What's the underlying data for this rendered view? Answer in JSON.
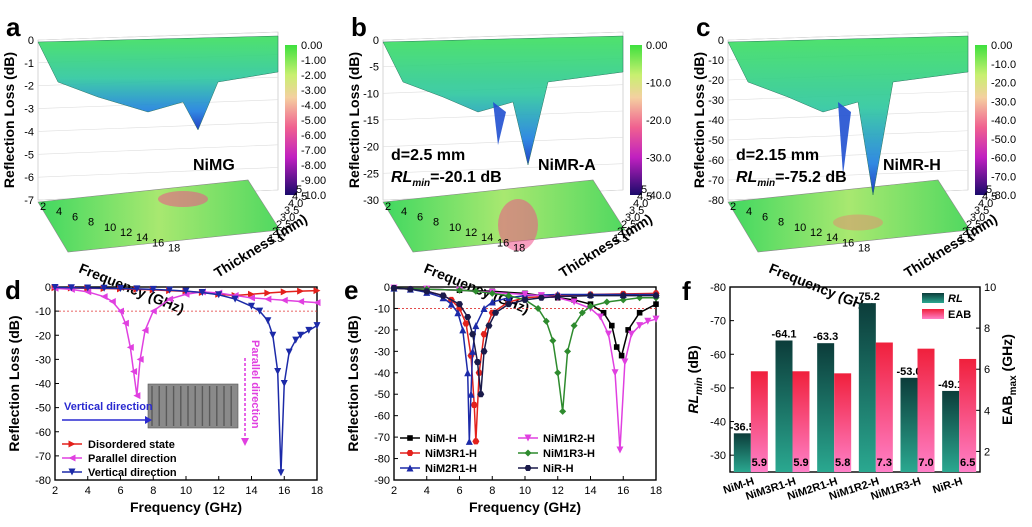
{
  "chart_data": [
    {
      "panel": "a",
      "type": "surface3d",
      "label": "NiMG",
      "zlabel": "Reflection Loss (dB)",
      "xlabel": "Frequency (GHz)",
      "ylabel": "Thickness (mm)",
      "zticks": [
        "0",
        "-1",
        "-2",
        "-3",
        "-4",
        "-5",
        "-6",
        "-7"
      ],
      "xticks": [
        "2",
        "4",
        "6",
        "8",
        "10",
        "12",
        "14",
        "16",
        "18"
      ],
      "yticks": [
        "1.5",
        "2.0",
        "2.5",
        "3.0",
        "3.5",
        "4.0",
        "4.5",
        "5"
      ],
      "colorbar": [
        "0.00",
        "-1.00",
        "-2.00",
        "-3.00",
        "-4.00",
        "-5.00",
        "-6.00",
        "-7.00",
        "-8.00",
        "-9.00",
        "-10.0"
      ]
    },
    {
      "panel": "b",
      "type": "surface3d",
      "label": "NiMR-A",
      "annotation": [
        "d=2.5 mm",
        "RLmin=-20.1 dB"
      ],
      "zlabel": "Reflection Loss (dB)",
      "xlabel": "Frequency (GHz)",
      "ylabel": "Thickness (mm)",
      "zticks": [
        "0",
        "-5",
        "-10",
        "-15",
        "-20",
        "-25",
        "-30"
      ],
      "xticks": [
        "2",
        "4",
        "6",
        "8",
        "10",
        "12",
        "14",
        "16",
        "18"
      ],
      "yticks": [
        "1.5",
        "2.0",
        "2.5",
        "3.0",
        "3.5",
        "4.0",
        "4.5",
        "5"
      ],
      "colorbar": [
        "0.00",
        "-10.0",
        "-20.0",
        "-30.0",
        "-40.0"
      ]
    },
    {
      "panel": "c",
      "type": "surface3d",
      "label": "NiMR-H",
      "annotation": [
        "d=2.15 mm",
        "RLmin=-75.2 dB"
      ],
      "zlabel": "Reflection Loss (dB)",
      "xlabel": "Frequency (GHz)",
      "ylabel": "Thickness (mm)",
      "zticks": [
        "0",
        "-10",
        "-20",
        "-30",
        "-40",
        "-50",
        "-60",
        "-70",
        "-80"
      ],
      "xticks": [
        "2",
        "4",
        "6",
        "8",
        "10",
        "12",
        "14",
        "16",
        "18"
      ],
      "yticks": [
        "1.5",
        "2.0",
        "2.5",
        "3.0",
        "3.5",
        "4.0",
        "4.5",
        "5"
      ],
      "colorbar": [
        "0.00",
        "-10.0",
        "-20.0",
        "-30.0",
        "-40.0",
        "-50.0",
        "-60.0",
        "-70.0",
        "-80.0"
      ]
    },
    {
      "panel": "d",
      "type": "line",
      "xlabel": "Frequency (GHz)",
      "ylabel": "Reflection Loss (dB)",
      "xlim": [
        2,
        18
      ],
      "ylim": [
        -80,
        0
      ],
      "xticks": [
        2,
        4,
        6,
        8,
        10,
        12,
        14,
        16,
        18
      ],
      "yticks": [
        0,
        -10,
        -20,
        -30,
        -40,
        -50,
        -60,
        -70,
        -80
      ],
      "threshold": -10,
      "annotations": [
        "Vertical direction",
        "Parallel direction"
      ],
      "series": [
        {
          "name": "Disordered state",
          "color": "#e3211c",
          "marker": "tri-right",
          "x": [
            2,
            3,
            4,
            5,
            6,
            7,
            8,
            9,
            10,
            11,
            12,
            13,
            14,
            15,
            16,
            17,
            18
          ],
          "y": [
            -0.3,
            -0.4,
            -0.5,
            -0.6,
            -0.8,
            -1.0,
            -1.2,
            -1.5,
            -1.8,
            -2.3,
            -3.0,
            -3.5,
            -3.0,
            -2.5,
            -2.0,
            -1.7,
            -1.5
          ]
        },
        {
          "name": "Parallel direction",
          "color": "#e040e0",
          "marker": "tri-left",
          "x": [
            2,
            3,
            4,
            5,
            5.5,
            6,
            6.3,
            6.6,
            6.8,
            7.0,
            7.2,
            7.5,
            8,
            9,
            10,
            11,
            12,
            13,
            14,
            15,
            16,
            17,
            18
          ],
          "y": [
            -0.5,
            -1.0,
            -2.0,
            -4.0,
            -6.0,
            -10,
            -15,
            -25,
            -35,
            -45,
            -30,
            -18,
            -10,
            -5,
            -3,
            -2,
            -2.5,
            -3.5,
            -4.5,
            -5.0,
            -5.5,
            -6.0,
            -6.5
          ]
        },
        {
          "name": "Vertical direction",
          "color": "#1c2aa8",
          "marker": "tri-down",
          "x": [
            2,
            3,
            4,
            5,
            6,
            7,
            8,
            9,
            10,
            11,
            12,
            13,
            14,
            14.5,
            15,
            15.3,
            15.6,
            15.8,
            16.0,
            16.3,
            16.7,
            17,
            17.5,
            18
          ],
          "y": [
            -0.2,
            -0.3,
            -0.4,
            -0.5,
            -0.6,
            -0.8,
            -1.0,
            -1.3,
            -1.7,
            -2.3,
            -3.2,
            -5.0,
            -8.0,
            -10,
            -14,
            -20,
            -35,
            -77,
            -40,
            -27,
            -22,
            -20,
            -18,
            -16
          ]
        }
      ]
    },
    {
      "panel": "e",
      "type": "line",
      "xlabel": "Frequency (GHz)",
      "ylabel": "Reflection Loss (dB)",
      "xlim": [
        2,
        18
      ],
      "ylim": [
        -90,
        0
      ],
      "xticks": [
        2,
        4,
        6,
        8,
        10,
        12,
        14,
        16,
        18
      ],
      "yticks": [
        0,
        -10,
        -20,
        -30,
        -40,
        -50,
        -60,
        -70,
        -80,
        -90
      ],
      "threshold": -10,
      "series": [
        {
          "name": "NiM-H",
          "color": "#000000",
          "marker": "square",
          "x": [
            2,
            4,
            6,
            8,
            10,
            11,
            12,
            13,
            14,
            14.8,
            15.3,
            15.6,
            15.9,
            16.3,
            17,
            18
          ],
          "y": [
            -0.5,
            -1.0,
            -1.5,
            -2.0,
            -3.0,
            -4.0,
            -5.0,
            -6.0,
            -8.0,
            -12,
            -18,
            -28,
            -32,
            -20,
            -12,
            -8
          ]
        },
        {
          "name": "NiM3R1-H",
          "color": "#e3211c",
          "marker": "circle",
          "x": [
            2,
            3,
            4,
            5,
            5.5,
            6,
            6.4,
            6.7,
            6.9,
            7.0,
            7.2,
            7.5,
            8,
            9,
            10,
            12,
            14,
            16,
            18
          ],
          "y": [
            -0.5,
            -1.0,
            -2.0,
            -4.0,
            -6.0,
            -10,
            -17,
            -32,
            -55,
            -72,
            -40,
            -22,
            -12,
            -7,
            -5,
            -4,
            -3.5,
            -3.2,
            -3.0
          ]
        },
        {
          "name": "NiM2R1-H",
          "color": "#1c2aa8",
          "marker": "tri-up",
          "x": [
            2,
            3,
            4,
            5,
            5.5,
            5.9,
            6.2,
            6.5,
            6.6,
            6.7,
            6.8,
            7.0,
            7.5,
            8,
            9,
            10,
            12,
            14,
            16,
            18
          ],
          "y": [
            -0.5,
            -1.0,
            -2.5,
            -5.0,
            -8.0,
            -12,
            -20,
            -40,
            -72,
            -50,
            -30,
            -18,
            -10,
            -7,
            -5,
            -4,
            -3.5,
            -3.5,
            -3.5,
            -3.5
          ]
        },
        {
          "name": "NiM1R2-H",
          "color": "#e040e0",
          "marker": "tri-down",
          "x": [
            2,
            4,
            6,
            8,
            10,
            11,
            12,
            13,
            14,
            14.6,
            15.1,
            15.5,
            15.8,
            16.1,
            16.5,
            17,
            17.5,
            18
          ],
          "y": [
            -0.5,
            -1.0,
            -1.5,
            -2.5,
            -3.5,
            -4.0,
            -5.0,
            -7.0,
            -10,
            -14,
            -22,
            -40,
            -76,
            -35,
            -22,
            -18,
            -16,
            -15
          ]
        },
        {
          "name": "NiM1R3-H",
          "color": "#2e8b2e",
          "marker": "diamond",
          "x": [
            2,
            4,
            6,
            7,
            8,
            9,
            10,
            10.8,
            11.3,
            11.7,
            12.0,
            12.3,
            12.6,
            13,
            13.5,
            14,
            15,
            16,
            17,
            18
          ],
          "y": [
            -0.5,
            -1.0,
            -1.5,
            -2.0,
            -3.0,
            -4.0,
            -6.0,
            -10,
            -16,
            -25,
            -40,
            -58,
            -30,
            -18,
            -12,
            -9,
            -7,
            -6,
            -5,
            -5
          ]
        },
        {
          "name": "NiR-H",
          "color": "#1a1a4a",
          "marker": "hexagon",
          "x": [
            2,
            3,
            4,
            5,
            6,
            6.5,
            6.8,
            7.1,
            7.3,
            7.5,
            7.8,
            8.2,
            9,
            10,
            11,
            12,
            14,
            16,
            18
          ],
          "y": [
            -0.5,
            -1.0,
            -2.0,
            -4.0,
            -8.0,
            -14,
            -22,
            -35,
            -50,
            -30,
            -18,
            -12,
            -8,
            -6,
            -5,
            -4.5,
            -4.0,
            -4.0,
            -4.0
          ]
        }
      ]
    },
    {
      "panel": "f",
      "type": "bar",
      "categories": [
        "NiM-H",
        "NiM3R1-H",
        "NiM2R1-H",
        "NiM1R2-H",
        "NiM1R3-H",
        "NiR-H"
      ],
      "ylabel_left": "RLmin (dB)",
      "ylabel_right": "EABmax (GHz)",
      "ylim_left": [
        -25,
        -80
      ],
      "ylim_right": [
        1,
        10
      ],
      "yticks_left": [
        "-30",
        "-40",
        "-50",
        "-60",
        "-70",
        "-80"
      ],
      "yticks_right": [
        "2",
        "4",
        "6",
        "8",
        "10"
      ],
      "legend": [
        "RL",
        "EAB"
      ],
      "series": [
        {
          "name": "RL",
          "color": "#10504a",
          "values": [
            -36.5,
            -64.1,
            -63.3,
            -75.2,
            -53.0,
            -49.1
          ],
          "labels": [
            "-36.5",
            "-64.1",
            "-63.3",
            "-75.2",
            "-53.0",
            "-49.1"
          ]
        },
        {
          "name": "EAB",
          "color": "#f03050",
          "values": [
            5.9,
            5.9,
            5.8,
            7.3,
            7.0,
            6.5
          ],
          "labels": [
            "5.9",
            "5.9",
            "5.8",
            "7.3",
            "7.0",
            "6.5"
          ]
        }
      ]
    }
  ],
  "inset": {
    "legend_d": [
      "Disordered state",
      "Parallel direction",
      "Vertical direction"
    ]
  }
}
